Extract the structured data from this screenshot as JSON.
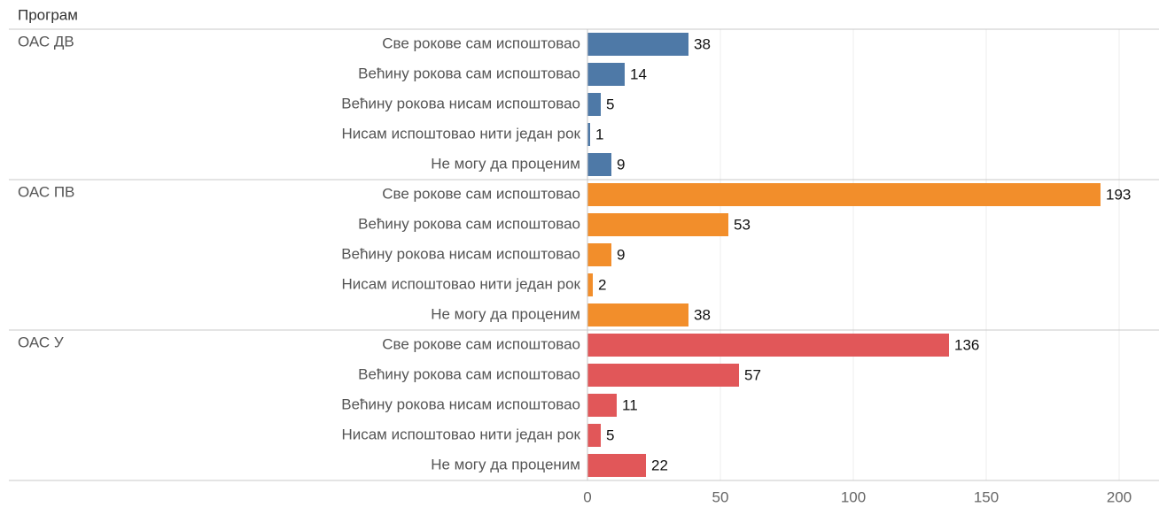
{
  "chart_data": {
    "type": "bar",
    "orientation": "horizontal",
    "y_title": "Програм",
    "categories": [
      "Све рокове сам испоштовао",
      "Већину рокова сам испоштовао",
      "Већину рокова нисам испоштовао",
      "Нисам испоштовао нити један рок",
      "Не могу да проценим"
    ],
    "series": [
      {
        "name": "ОАС ДВ",
        "color": "#4e79a7",
        "values": [
          38,
          14,
          5,
          1,
          9
        ]
      },
      {
        "name": "ОАС ПВ",
        "color": "#f28e2b",
        "values": [
          193,
          53,
          9,
          2,
          38
        ]
      },
      {
        "name": "ОАС У",
        "color": "#e15759",
        "values": [
          136,
          57,
          11,
          5,
          22
        ]
      }
    ],
    "xlim": [
      0,
      215
    ],
    "xticks": [
      0,
      50,
      100,
      150,
      200
    ],
    "grid": true
  }
}
